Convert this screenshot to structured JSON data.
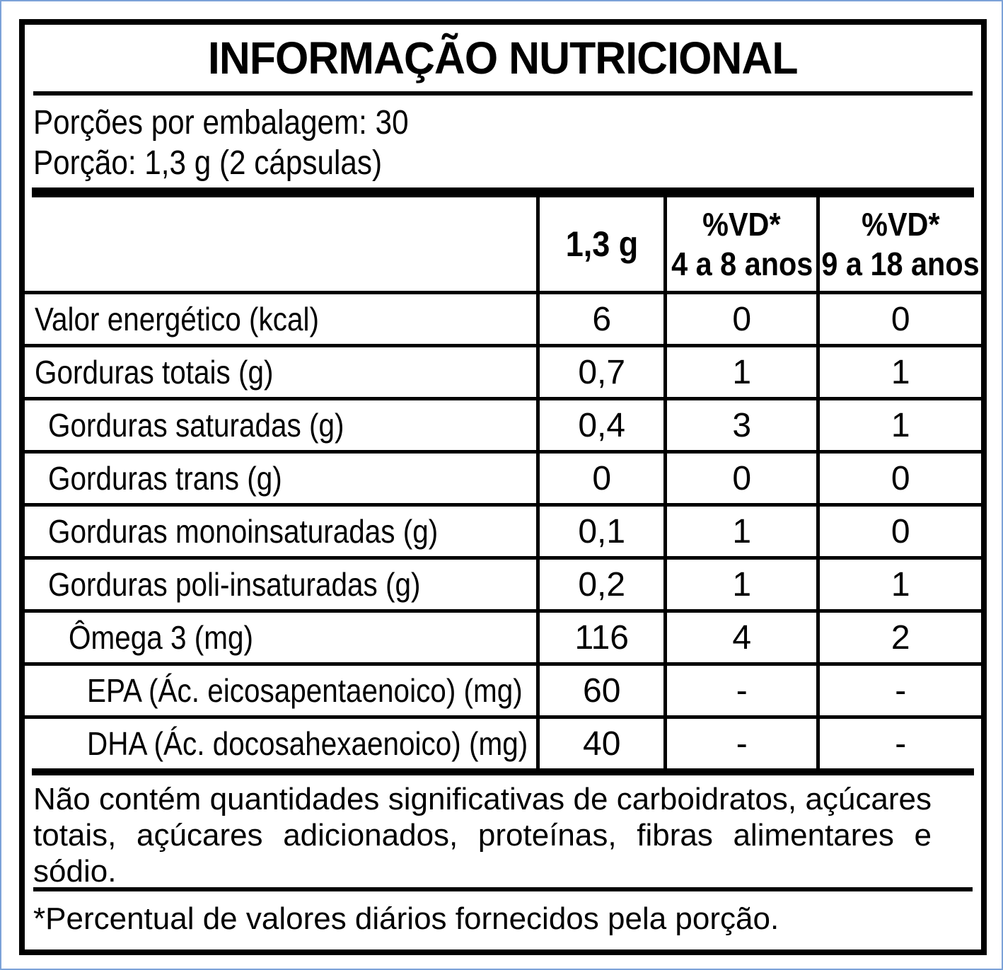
{
  "colors": {
    "edge_blue": "#7ca2d8",
    "ink": "#000000",
    "background": "#ffffff"
  },
  "title": "INFORMAÇÃO NUTRICIONAL",
  "serving": {
    "line1": "Porções por embalagem: 30",
    "line2": "Porção: 1,3 g (2 cápsulas)"
  },
  "table": {
    "columns": [
      {
        "label": ""
      },
      {
        "label": "1,3 g"
      },
      {
        "label": "%VD*",
        "sub": "4 a 8 anos"
      },
      {
        "label": "%VD*",
        "sub": "9 a 18 anos"
      }
    ],
    "rows": [
      {
        "label": "Valor energético (kcal)",
        "indent": 0,
        "amount": "6",
        "vd_4_8": "0",
        "vd_9_18": "0"
      },
      {
        "label": "Gorduras totais (g)",
        "indent": 0,
        "amount": "0,7",
        "vd_4_8": "1",
        "vd_9_18": "1"
      },
      {
        "label": "Gorduras saturadas (g)",
        "indent": 1,
        "amount": "0,4",
        "vd_4_8": "3",
        "vd_9_18": "1"
      },
      {
        "label": "Gorduras trans (g)",
        "indent": 1,
        "amount": "0",
        "vd_4_8": "0",
        "vd_9_18": "0"
      },
      {
        "label": "Gorduras monoinsaturadas (g)",
        "indent": 1,
        "amount": "0,1",
        "vd_4_8": "1",
        "vd_9_18": "0"
      },
      {
        "label": "Gorduras poli-insaturadas (g)",
        "indent": 1,
        "amount": "0,2",
        "vd_4_8": "1",
        "vd_9_18": "1"
      },
      {
        "label": "Ômega 3 (mg)",
        "indent": 2,
        "amount": "116",
        "vd_4_8": "4",
        "vd_9_18": "2"
      },
      {
        "label": "EPA (Ác. eicosapentaenoico) (mg)",
        "indent": 3,
        "amount": "60",
        "vd_4_8": "-",
        "vd_9_18": "-"
      },
      {
        "label": "DHA (Ác. docosahexaenoico) (mg)",
        "indent": 3,
        "amount": "40",
        "vd_4_8": "-",
        "vd_9_18": "-"
      }
    ]
  },
  "notes": {
    "no_significant": "Não contém quantidades significativas de carboidratos, açúcares totais, açúcares adicionados, proteínas, fibras alimentares e sódio.",
    "footnote": "*Percentual de valores diários fornecidos pela porção."
  }
}
